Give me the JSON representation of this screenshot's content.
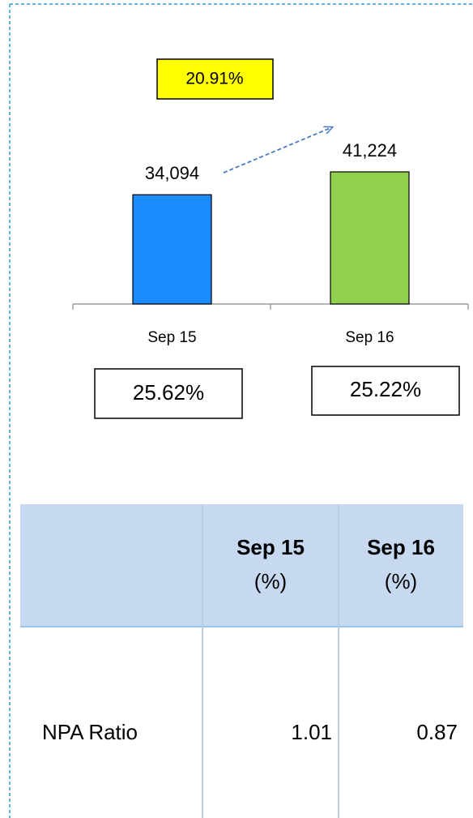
{
  "chart_data": {
    "type": "bar",
    "categories": [
      "Sep 15",
      "Sep 16"
    ],
    "values": [
      34094,
      41224
    ],
    "value_labels": [
      "34,094",
      "41,224"
    ],
    "colors": [
      "#1a8cff",
      "#92d050"
    ],
    "growth_label": "20.91%",
    "ratio_labels": [
      "25.62%",
      "25.22%"
    ]
  },
  "table": {
    "columns": [
      {
        "name": "Sep 15",
        "unit": "(%)"
      },
      {
        "name": "Sep 16",
        "unit": "(%)"
      }
    ],
    "rows": [
      {
        "label": "NPA Ratio",
        "values": [
          1.01,
          0.87
        ]
      }
    ]
  }
}
